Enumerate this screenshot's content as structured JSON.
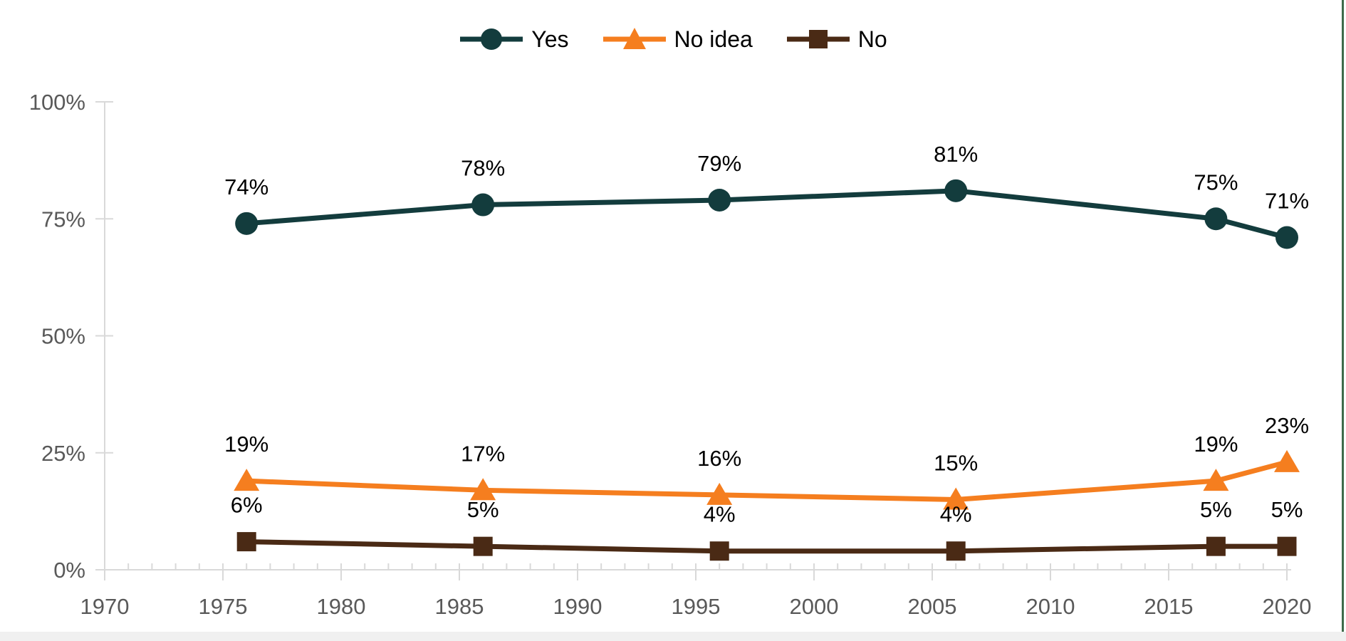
{
  "page": {
    "background_color": "#ffffff",
    "right_border_color": "#3f6b4a",
    "bottom_strip_color": "#f0f0f0"
  },
  "chart_data": {
    "type": "line",
    "title": "",
    "xlabel": "",
    "ylabel": "",
    "grid": false,
    "x": [
      1976,
      1986,
      1996,
      2006,
      2017,
      2020
    ],
    "series": [
      {
        "name": "Yes",
        "color": "#133c3d",
        "marker": "circle",
        "values": [
          74,
          78,
          79,
          81,
          75,
          71
        ],
        "labels": [
          "74%",
          "78%",
          "79%",
          "81%",
          "75%",
          "71%"
        ]
      },
      {
        "name": "No idea",
        "color": "#f57e1f",
        "marker": "triangle",
        "values": [
          19,
          17,
          16,
          15,
          19,
          23
        ],
        "labels": [
          "19%",
          "17%",
          "16%",
          "15%",
          "19%",
          "23%"
        ]
      },
      {
        "name": "No",
        "color": "#4a2a15",
        "marker": "square",
        "values": [
          6,
          5,
          4,
          4,
          5,
          5
        ],
        "labels": [
          "6%",
          "5%",
          "4%",
          "4%",
          "5%",
          "5%"
        ]
      }
    ],
    "x_axis": {
      "min": 1970,
      "max": 2020,
      "major_tick_interval": 5,
      "minor_tick_interval": 1,
      "tick_labels": [
        "1970",
        "1975",
        "1980",
        "1985",
        "1990",
        "1995",
        "2000",
        "2005",
        "2010",
        "2015",
        "2020"
      ]
    },
    "y_axis": {
      "min": 0,
      "max": 100,
      "tick_interval": 25,
      "tick_labels": [
        "0%",
        "25%",
        "50%",
        "75%",
        "100%"
      ]
    },
    "legend": {
      "position": "top"
    },
    "colors": {
      "axis_line": "#d9d9d9",
      "tick_label": "#595959",
      "data_label": "#000000"
    }
  }
}
